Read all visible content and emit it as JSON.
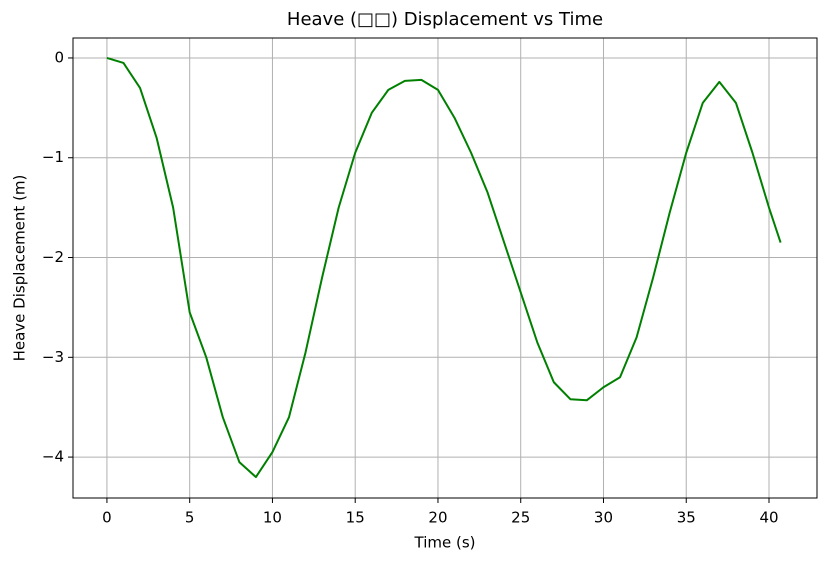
{
  "chart_data": {
    "type": "line",
    "title": "Heave (□□) Displacement vs Time",
    "x_label": "Time (s)",
    "y_label": "Heave Displacement (m)",
    "x": [
      0,
      1,
      2,
      3,
      4,
      5,
      6,
      7,
      8,
      9,
      10,
      11,
      12,
      13,
      14,
      15,
      16,
      17,
      18,
      19,
      20,
      21,
      22,
      23,
      24,
      25,
      26,
      27,
      28,
      29,
      30,
      31,
      32,
      33,
      34,
      35,
      36,
      37,
      38,
      39,
      40,
      40.7
    ],
    "values": [
      0,
      -0.05,
      -0.3,
      -0.8,
      -1.5,
      -2.55,
      -3.0,
      -3.6,
      -4.05,
      -4.2,
      -3.95,
      -3.6,
      -2.95,
      -2.2,
      -1.5,
      -0.95,
      -0.55,
      -0.32,
      -0.23,
      -0.22,
      -0.32,
      -0.6,
      -0.95,
      -1.35,
      -1.85,
      -2.35,
      -2.85,
      -3.25,
      -3.42,
      -3.43,
      -3.3,
      -3.2,
      -2.8,
      -2.2,
      -1.55,
      -0.95,
      -0.45,
      -0.24,
      -0.45,
      -0.95,
      -1.5,
      -1.85
    ],
    "color": "#008000",
    "xlim": [
      -2.05,
      42.9
    ],
    "ylim": [
      -4.41,
      0.2
    ],
    "xticks": [
      0,
      5,
      10,
      15,
      20,
      25,
      30,
      35,
      40
    ],
    "yticks": [
      0,
      {
        "value": -1,
        "label": "−1"
      },
      {
        "value": -2,
        "label": "−2"
      },
      {
        "value": -3,
        "label": "−3"
      },
      {
        "value": -4,
        "label": "−4"
      }
    ],
    "grid": true
  }
}
